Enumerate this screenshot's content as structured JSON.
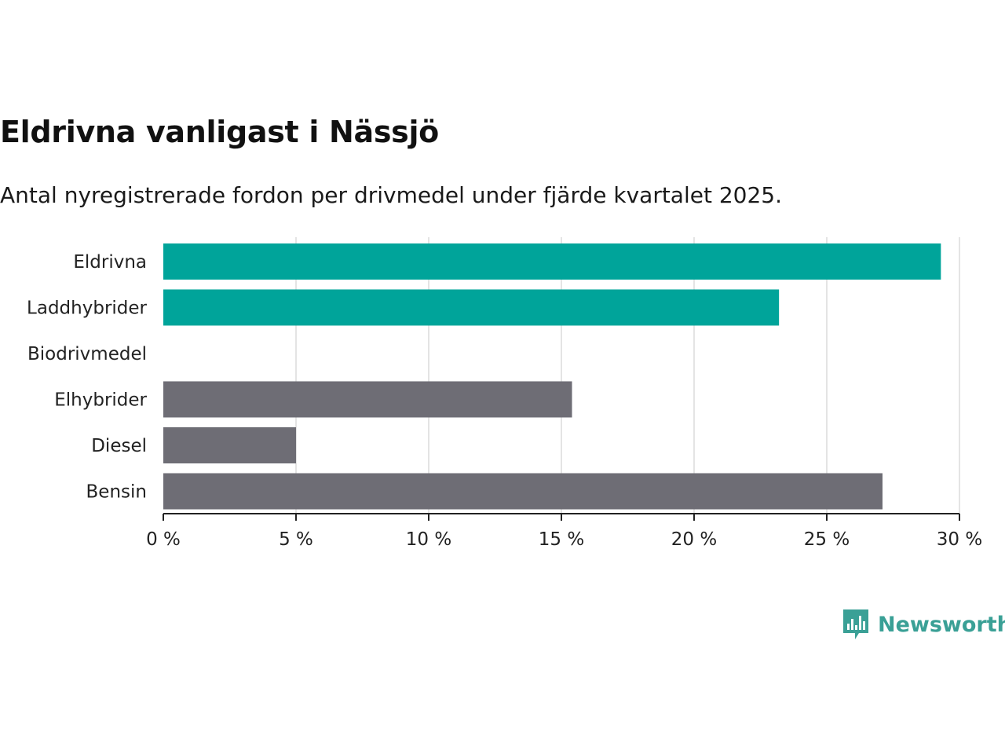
{
  "title": "Eldrivna vanligast i Nässjö",
  "subtitle": "Antal nyregistrerade fordon per drivmedel under fjärde kvartalet 2025.",
  "brand": "Newsworthy",
  "colors": {
    "highlight": "#00a49a",
    "neutral": "#6e6d75",
    "grid": "#dcdcdc",
    "axis": "#222222",
    "brand": "#3aa096"
  },
  "chart_data": {
    "type": "bar",
    "orientation": "horizontal",
    "categories": [
      "Eldrivna",
      "Laddhybrider",
      "Biodrivmedel",
      "Elhybrider",
      "Diesel",
      "Bensin"
    ],
    "values": [
      29.3,
      23.2,
      0,
      15.4,
      5.0,
      27.1
    ],
    "highlight": [
      true,
      true,
      true,
      false,
      false,
      false
    ],
    "xlim": [
      0,
      30
    ],
    "xticks": [
      0,
      5,
      10,
      15,
      20,
      25,
      30
    ],
    "xtick_labels": [
      "0 %",
      "5 %",
      "10 %",
      "15 %",
      "20 %",
      "25 %",
      "30 %"
    ],
    "grid": true,
    "legend": "none"
  }
}
